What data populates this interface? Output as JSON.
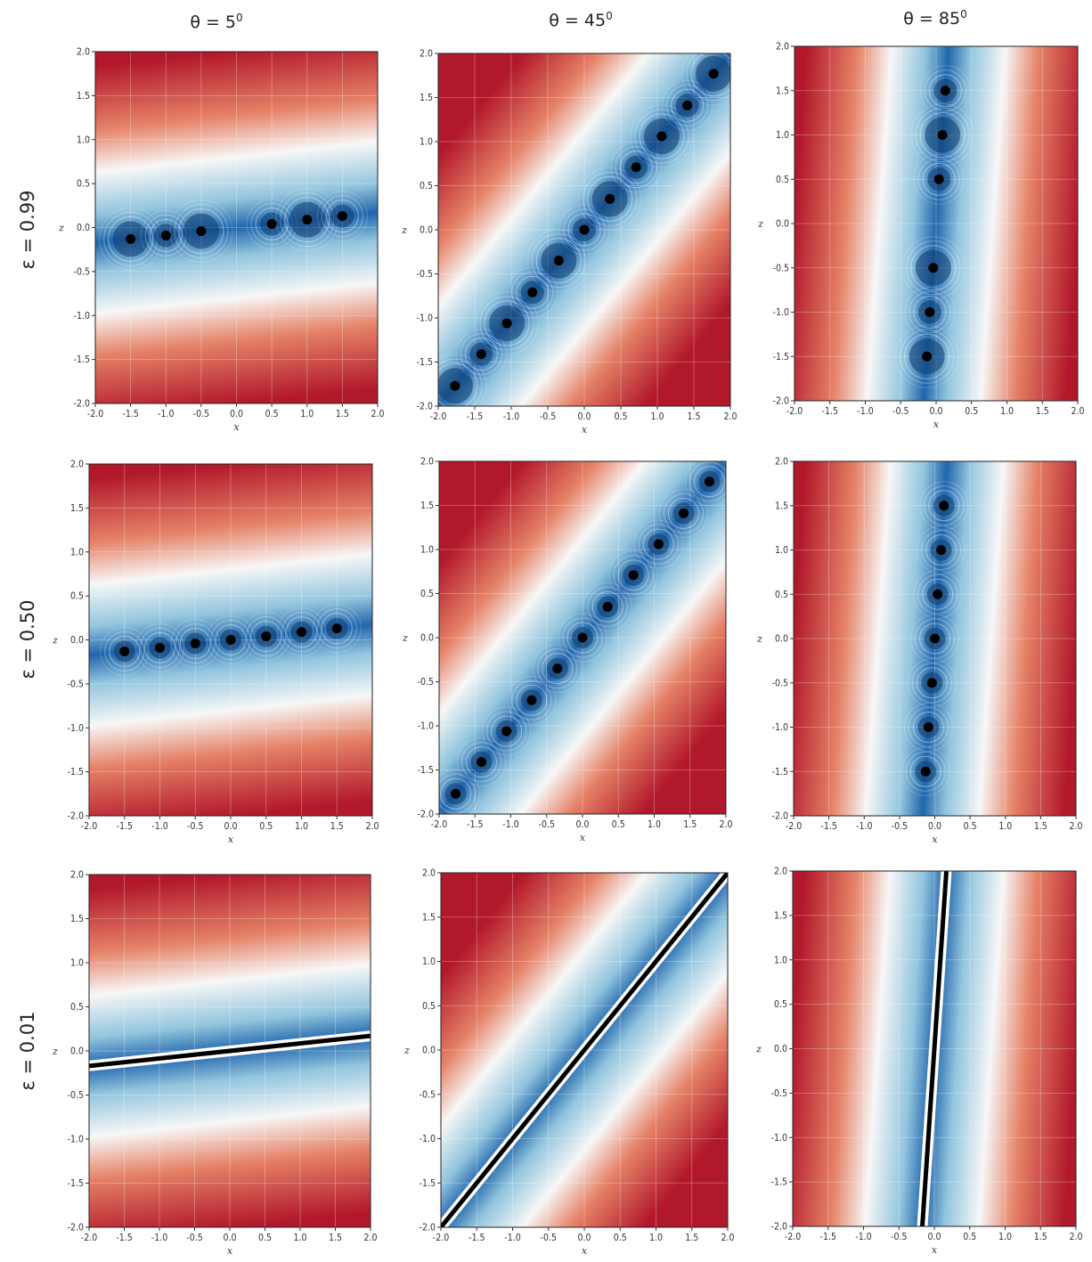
{
  "figure": {
    "col_titles": [
      {
        "base": "θ = 5",
        "sup": "0"
      },
      {
        "base": "θ = 45",
        "sup": "0"
      },
      {
        "base": "θ = 85",
        "sup": "0"
      }
    ],
    "row_labels": [
      "ε = 0.99",
      "ε = 0.50",
      "ε = 0.01"
    ]
  },
  "colors": {
    "red": "#b2182b",
    "white": "#f7f7f7",
    "blue": "#2166ac",
    "marker": "#000000"
  },
  "chart_data": [
    {
      "type": "heatmap",
      "row": 0,
      "col": 0,
      "epsilon": 0.99,
      "theta_deg": 5,
      "xlabel": "x",
      "ylabel": "z",
      "xlim": [
        -2.0,
        2.0
      ],
      "ylim": [
        -2.0,
        2.0
      ],
      "xticks": [
        "-2.0",
        "-1.5",
        "-1.0",
        "-0.5",
        "0.0",
        "0.5",
        "1.0",
        "1.5",
        "2.0"
      ],
      "yticks": [
        "-2.0",
        "-1.5",
        "-1.0",
        "-0.5",
        "0.0",
        "0.5",
        "1.0",
        "1.5",
        "2.0"
      ],
      "grid": true,
      "colormap": "RdBu",
      "rendering": "points",
      "points": [
        {
          "x": -1.5,
          "z": -0.13
        },
        {
          "x": -1.0,
          "z": -0.09
        },
        {
          "x": -0.5,
          "z": -0.04
        },
        {
          "x": 0.5,
          "z": 0.04
        },
        {
          "x": 1.0,
          "z": 0.09
        },
        {
          "x": 1.5,
          "z": 0.13
        }
      ]
    },
    {
      "type": "heatmap",
      "row": 0,
      "col": 1,
      "epsilon": 0.99,
      "theta_deg": 45,
      "xlabel": "x",
      "ylabel": "z",
      "xlim": [
        -2.0,
        2.0
      ],
      "ylim": [
        -2.0,
        2.0
      ],
      "xticks": [
        "-2.0",
        "-1.5",
        "-1.0",
        "-0.5",
        "0.0",
        "0.5",
        "1.0",
        "1.5",
        "2.0"
      ],
      "yticks": [
        "-2.0",
        "-1.5",
        "-1.0",
        "-0.5",
        "0.0",
        "0.5",
        "1.0",
        "1.5",
        "2.0"
      ],
      "grid": true,
      "colormap": "RdBu",
      "rendering": "points",
      "points": [
        {
          "x": -1.77,
          "z": -1.77
        },
        {
          "x": -1.41,
          "z": -1.41
        },
        {
          "x": -1.06,
          "z": -1.06
        },
        {
          "x": -0.71,
          "z": -0.71
        },
        {
          "x": -0.35,
          "z": -0.35
        },
        {
          "x": 0.0,
          "z": 0.0
        },
        {
          "x": 0.35,
          "z": 0.35
        },
        {
          "x": 0.71,
          "z": 0.71
        },
        {
          "x": 1.06,
          "z": 1.06
        },
        {
          "x": 1.41,
          "z": 1.41
        },
        {
          "x": 1.77,
          "z": 1.77
        }
      ]
    },
    {
      "type": "heatmap",
      "row": 0,
      "col": 2,
      "epsilon": 0.99,
      "theta_deg": 85,
      "xlabel": "x",
      "ylabel": "z",
      "xlim": [
        -2.0,
        2.0
      ],
      "ylim": [
        -2.0,
        2.0
      ],
      "xticks": [
        "-2.0",
        "-1.5",
        "-1.0",
        "-0.5",
        "0.0",
        "0.5",
        "1.0",
        "1.5",
        "2.0"
      ],
      "yticks": [
        "-2.0",
        "-1.5",
        "-1.0",
        "-0.5",
        "0.0",
        "0.5",
        "1.0",
        "1.5",
        "2.0"
      ],
      "grid": true,
      "colormap": "RdBu",
      "rendering": "points",
      "points": [
        {
          "x": -0.13,
          "z": -1.5
        },
        {
          "x": -0.09,
          "z": -1.0
        },
        {
          "x": -0.04,
          "z": -0.5
        },
        {
          "x": 0.04,
          "z": 0.5
        },
        {
          "x": 0.09,
          "z": 1.0
        },
        {
          "x": 0.13,
          "z": 1.5
        }
      ]
    },
    {
      "type": "heatmap",
      "row": 1,
      "col": 0,
      "epsilon": 0.5,
      "theta_deg": 5,
      "xlabel": "x",
      "ylabel": "z",
      "xlim": [
        -2.0,
        2.0
      ],
      "ylim": [
        -2.0,
        2.0
      ],
      "xticks": [
        "-2.0",
        "-1.5",
        "-1.0",
        "-0.5",
        "0.0",
        "0.5",
        "1.0",
        "1.5",
        "2.0"
      ],
      "yticks": [
        "-2.0",
        "-1.5",
        "-1.0",
        "-0.5",
        "0.0",
        "0.5",
        "1.0",
        "1.5",
        "2.0"
      ],
      "grid": true,
      "colormap": "RdBu",
      "rendering": "points",
      "points": [
        {
          "x": -1.5,
          "z": -0.13
        },
        {
          "x": -1.0,
          "z": -0.09
        },
        {
          "x": -0.5,
          "z": -0.04
        },
        {
          "x": 0.0,
          "z": 0.0
        },
        {
          "x": 0.5,
          "z": 0.04
        },
        {
          "x": 1.0,
          "z": 0.09
        },
        {
          "x": 1.5,
          "z": 0.13
        }
      ]
    },
    {
      "type": "heatmap",
      "row": 1,
      "col": 1,
      "epsilon": 0.5,
      "theta_deg": 45,
      "xlabel": "x",
      "ylabel": "z",
      "xlim": [
        -2.0,
        2.0
      ],
      "ylim": [
        -2.0,
        2.0
      ],
      "xticks": [
        "-2.0",
        "-1.5",
        "-1.0",
        "-0.5",
        "0.0",
        "0.5",
        "1.0",
        "1.5",
        "2.0"
      ],
      "yticks": [
        "-2.0",
        "-1.5",
        "-1.0",
        "-0.5",
        "0.0",
        "0.5",
        "1.0",
        "1.5",
        "2.0"
      ],
      "grid": true,
      "colormap": "RdBu",
      "rendering": "points",
      "points": [
        {
          "x": -1.77,
          "z": -1.77
        },
        {
          "x": -1.41,
          "z": -1.41
        },
        {
          "x": -1.06,
          "z": -1.06
        },
        {
          "x": -0.71,
          "z": -0.71
        },
        {
          "x": -0.35,
          "z": -0.35
        },
        {
          "x": 0.0,
          "z": 0.0
        },
        {
          "x": 0.35,
          "z": 0.35
        },
        {
          "x": 0.71,
          "z": 0.71
        },
        {
          "x": 1.06,
          "z": 1.06
        },
        {
          "x": 1.41,
          "z": 1.41
        },
        {
          "x": 1.77,
          "z": 1.77
        }
      ]
    },
    {
      "type": "heatmap",
      "row": 1,
      "col": 2,
      "epsilon": 0.5,
      "theta_deg": 85,
      "xlabel": "x",
      "ylabel": "z",
      "xlim": [
        -2.0,
        2.0
      ],
      "ylim": [
        -2.0,
        2.0
      ],
      "xticks": [
        "-2.0",
        "-1.5",
        "-1.0",
        "-0.5",
        "0.0",
        "0.5",
        "1.0",
        "1.5",
        "2.0"
      ],
      "yticks": [
        "-2.0",
        "-1.5",
        "-1.0",
        "-0.5",
        "0.0",
        "0.5",
        "1.0",
        "1.5",
        "2.0"
      ],
      "grid": true,
      "colormap": "RdBu",
      "rendering": "points",
      "points": [
        {
          "x": -0.13,
          "z": -1.5
        },
        {
          "x": -0.09,
          "z": -1.0
        },
        {
          "x": -0.04,
          "z": -0.5
        },
        {
          "x": 0.0,
          "z": 0.0
        },
        {
          "x": 0.04,
          "z": 0.5
        },
        {
          "x": 0.09,
          "z": 1.0
        },
        {
          "x": 0.13,
          "z": 1.5
        }
      ]
    },
    {
      "type": "heatmap",
      "row": 2,
      "col": 0,
      "epsilon": 0.01,
      "theta_deg": 5,
      "xlabel": "x",
      "ylabel": "z",
      "xlim": [
        -2.0,
        2.0
      ],
      "ylim": [
        -2.0,
        2.0
      ],
      "xticks": [
        "-2.0",
        "-1.5",
        "-1.0",
        "-0.5",
        "0.0",
        "0.5",
        "1.0",
        "1.5",
        "2.0"
      ],
      "yticks": [
        "-2.0",
        "-1.5",
        "-1.0",
        "-0.5",
        "0.0",
        "0.5",
        "1.0",
        "1.5",
        "2.0"
      ],
      "grid": true,
      "colormap": "RdBu",
      "rendering": "line",
      "line": [
        {
          "x": -2.0,
          "z": -0.17
        },
        {
          "x": 2.0,
          "z": 0.17
        }
      ]
    },
    {
      "type": "heatmap",
      "row": 2,
      "col": 1,
      "epsilon": 0.01,
      "theta_deg": 45,
      "xlabel": "x",
      "ylabel": "z",
      "xlim": [
        -2.0,
        2.0
      ],
      "ylim": [
        -2.0,
        2.0
      ],
      "xticks": [
        "-2.0",
        "-1.5",
        "-1.0",
        "-0.5",
        "0.0",
        "0.5",
        "1.0",
        "1.5",
        "2.0"
      ],
      "yticks": [
        "-2.0",
        "-1.5",
        "-1.0",
        "-0.5",
        "0.0",
        "0.5",
        "1.0",
        "1.5",
        "2.0"
      ],
      "grid": true,
      "colormap": "RdBu",
      "rendering": "line",
      "line": [
        {
          "x": -2.0,
          "z": -2.0
        },
        {
          "x": 2.0,
          "z": 2.0
        }
      ]
    },
    {
      "type": "heatmap",
      "row": 2,
      "col": 2,
      "epsilon": 0.01,
      "theta_deg": 85,
      "xlabel": "x",
      "ylabel": "z",
      "xlim": [
        -2.0,
        2.0
      ],
      "ylim": [
        -2.0,
        2.0
      ],
      "xticks": [
        "-2.0",
        "-1.5",
        "-1.0",
        "-0.5",
        "0.0",
        "0.5",
        "1.0",
        "1.5",
        "2.0"
      ],
      "yticks": [
        "-2.0",
        "-1.5",
        "-1.0",
        "-0.5",
        "0.0",
        "0.5",
        "1.0",
        "1.5",
        "2.0"
      ],
      "grid": true,
      "colormap": "RdBu",
      "rendering": "line",
      "line": [
        {
          "x": -0.17,
          "z": -2.0
        },
        {
          "x": 0.17,
          "z": 2.0
        }
      ]
    }
  ]
}
